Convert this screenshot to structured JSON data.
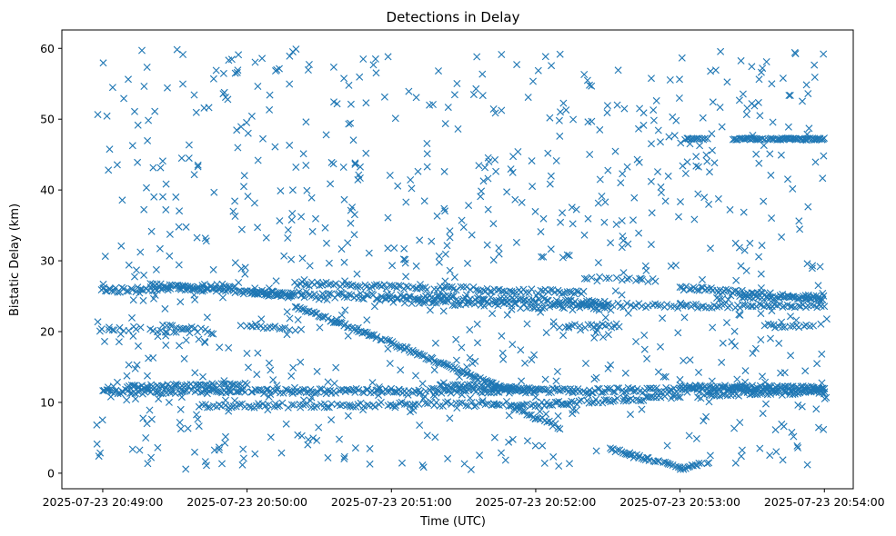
{
  "chart_data": {
    "type": "scatter",
    "title": "Detections in Delay",
    "xlabel": "Time (UTC)",
    "ylabel": "Bistatic Delay (km)",
    "xlim_seconds": [
      -17,
      312
    ],
    "ylim": [
      -2.2,
      62.6
    ],
    "x_ticks": [
      {
        "seconds": 0,
        "label": "2025-07-23 20:49:00"
      },
      {
        "seconds": 60,
        "label": "2025-07-23 20:50:00"
      },
      {
        "seconds": 120,
        "label": "2025-07-23 20:51:00"
      },
      {
        "seconds": 180,
        "label": "2025-07-23 20:52:00"
      },
      {
        "seconds": 240,
        "label": "2025-07-23 20:53:00"
      },
      {
        "seconds": 300,
        "label": "2025-07-23 20:54:00"
      }
    ],
    "y_ticks": [
      {
        "value": 0,
        "label": "0"
      },
      {
        "value": 10,
        "label": "10"
      },
      {
        "value": 20,
        "label": "20"
      },
      {
        "value": 30,
        "label": "30"
      },
      {
        "value": 40,
        "label": "40"
      },
      {
        "value": 50,
        "label": "50"
      },
      {
        "value": 60,
        "label": "60"
      }
    ],
    "marker": "x",
    "color": "#1f77b4",
    "tracks": [
      {
        "x0": 0,
        "x1": 300,
        "y0": 11.5,
        "y1": 11.8,
        "step": 0.8,
        "jitter": 0.35
      },
      {
        "x0": 0,
        "x1": 55,
        "y0": 25.8,
        "y1": 26.5,
        "step": 0.9,
        "jitter": 0.35
      },
      {
        "x0": 20,
        "x1": 80,
        "y0": 26.5,
        "y1": 25.2,
        "step": 0.8,
        "jitter": 0.35
      },
      {
        "x0": 60,
        "x1": 210,
        "y0": 25.5,
        "y1": 24.0,
        "step": 0.8,
        "jitter": 0.4
      },
      {
        "x0": 80,
        "x1": 200,
        "y0": 26.8,
        "y1": 25.5,
        "step": 1.0,
        "jitter": 0.3
      },
      {
        "x0": 115,
        "x1": 210,
        "y0": 24.5,
        "y1": 23.2,
        "step": 1.2,
        "jitter": 0.4
      },
      {
        "x0": 240,
        "x1": 300,
        "y0": 26.2,
        "y1": 24.6,
        "step": 0.8,
        "jitter": 0.3
      },
      {
        "x0": 240,
        "x1": 300,
        "y0": 23.6,
        "y1": 23.6,
        "step": 1.1,
        "jitter": 0.3
      },
      {
        "x0": 255,
        "x1": 300,
        "y0": 24.8,
        "y1": 24.8,
        "step": 1.2,
        "jitter": 0.3
      },
      {
        "x0": 80,
        "x1": 112,
        "y0": 23.5,
        "y1": 19.5,
        "step": 0.7,
        "jitter": 0.25
      },
      {
        "x0": 112,
        "x1": 170,
        "y0": 19.5,
        "y1": 11.5,
        "step": 0.7,
        "jitter": 0.25
      },
      {
        "x0": 10,
        "x1": 60,
        "y0": 12.2,
        "y1": 12.5,
        "step": 0.9,
        "jitter": 0.25
      },
      {
        "x0": 40,
        "x1": 170,
        "y0": 9.5,
        "y1": 9.8,
        "step": 1.2,
        "jitter": 0.35
      },
      {
        "x0": 170,
        "x1": 240,
        "y0": 9.5,
        "y1": 10.8,
        "step": 0.9,
        "jitter": 0.3
      },
      {
        "x0": 240,
        "x1": 300,
        "y0": 12.2,
        "y1": 12.0,
        "step": 0.7,
        "jitter": 0.3
      },
      {
        "x0": 250,
        "x1": 300,
        "y0": 11.0,
        "y1": 11.5,
        "step": 1.1,
        "jitter": 0.3
      },
      {
        "x0": 140,
        "x1": 180,
        "y0": 12.5,
        "y1": 11.8,
        "step": 0.9,
        "jitter": 0.3
      },
      {
        "x0": 170,
        "x1": 190,
        "y0": 9.5,
        "y1": 6.5,
        "step": 0.9,
        "jitter": 0.3
      },
      {
        "x0": 210,
        "x1": 240,
        "y0": 3.5,
        "y1": 0.8,
        "step": 0.8,
        "jitter": 0.2
      },
      {
        "x0": 240,
        "x1": 252,
        "y0": 0.6,
        "y1": 1.6,
        "step": 0.8,
        "jitter": 0.2
      },
      {
        "x0": 0,
        "x1": 40,
        "y0": 20.5,
        "y1": 20.0,
        "step": 2.2,
        "jitter": 0.3
      },
      {
        "x0": 25,
        "x1": 45,
        "y0": 21.0,
        "y1": 20.0,
        "step": 1.3,
        "jitter": 0.3
      },
      {
        "x0": 60,
        "x1": 80,
        "y0": 20.7,
        "y1": 20.4,
        "step": 1.3,
        "jitter": 0.3
      },
      {
        "x0": 190,
        "x1": 215,
        "y0": 20.8,
        "y1": 20.8,
        "step": 1.2,
        "jitter": 0.3
      },
      {
        "x0": 275,
        "x1": 300,
        "y0": 20.8,
        "y1": 20.8,
        "step": 1.5,
        "jitter": 0.3
      },
      {
        "x0": 242,
        "x1": 252,
        "y0": 47.2,
        "y1": 47.2,
        "step": 0.8,
        "jitter": 0.1
      },
      {
        "x0": 262,
        "x1": 300,
        "y0": 47.2,
        "y1": 47.2,
        "step": 0.55,
        "jitter": 0.12
      },
      {
        "x0": 200,
        "x1": 240,
        "y0": 23.8,
        "y1": 23.6,
        "step": 1.3,
        "jitter": 0.3
      },
      {
        "x0": 200,
        "x1": 230,
        "y0": 27.5,
        "y1": 27.2,
        "step": 1.8,
        "jitter": 0.3
      }
    ],
    "noise": {
      "count": 880,
      "x_range": [
        -3,
        301
      ],
      "y_range": [
        0.5,
        60
      ],
      "seed": 20250723
    }
  }
}
